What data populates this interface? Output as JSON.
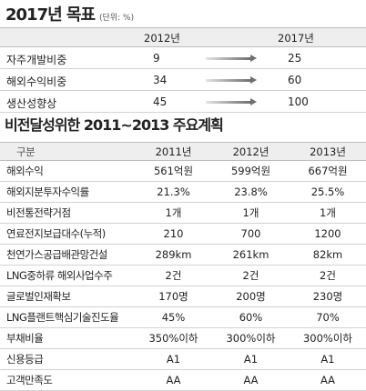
{
  "section1": {
    "title": "2017년 목표",
    "unit": "(단위: %)",
    "headers": [
      "2012년",
      "2017년"
    ],
    "rows": [
      {
        "label": "자주개발비중",
        "v2012": "9",
        "v2017": "25"
      },
      {
        "label": "해외수익비중",
        "v2012": "34",
        "v2017": "60"
      },
      {
        "label": "생산성향상",
        "v2012": "45",
        "v2017": "100"
      }
    ]
  },
  "section2": {
    "title": "비전달성위한 2011~2013 주요계획",
    "headers": [
      "구분",
      "2011년",
      "2012년",
      "2013년"
    ],
    "rows": [
      [
        "해외수익",
        "561억원",
        "599억원",
        "667억원"
      ],
      [
        "해외지분투자수익률",
        "21.3%",
        "23.8%",
        "25.5%"
      ],
      [
        "비전통전략거점",
        "1개",
        "1개",
        "1개"
      ],
      [
        "연료전지보급대수(누적)",
        "210",
        "700",
        "1200"
      ],
      [
        "천연가스공급배관망건설",
        "289km",
        "261km",
        "82km"
      ],
      [
        "LNG중하류 해외사업수주",
        "2건",
        "2건",
        "2건"
      ],
      [
        "글로벌인재확보",
        "170명",
        "200명",
        "230명"
      ],
      [
        "LNG플랜트핵심기술진도율",
        "45%",
        "60%",
        "70%"
      ],
      [
        "부채비율",
        "350%이하",
        "300%이하",
        "300%이하"
      ],
      [
        "신용등급",
        "A1",
        "A1",
        "A1"
      ],
      [
        "고객만족도",
        "AA",
        "AA",
        "AA"
      ]
    ]
  }
}
